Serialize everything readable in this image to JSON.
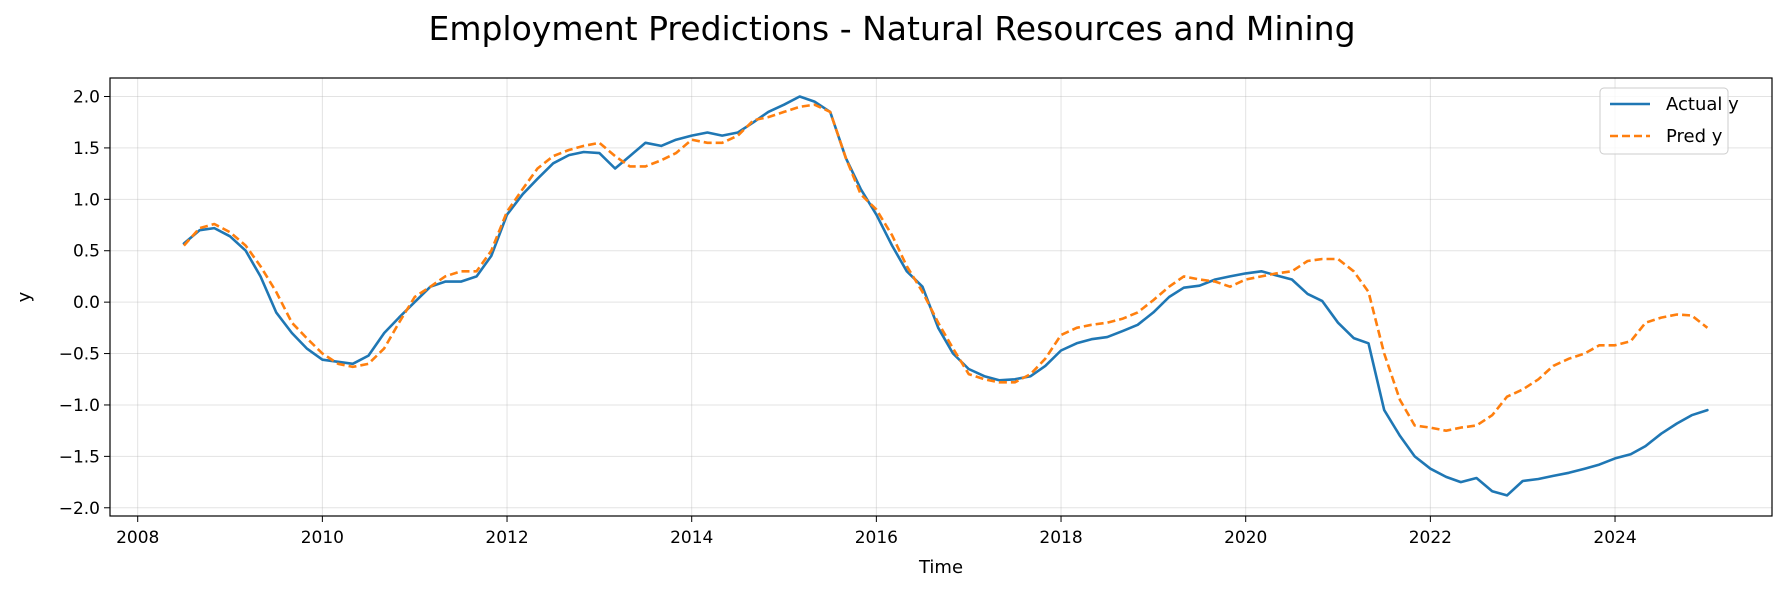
{
  "chart_data": {
    "type": "line",
    "title": "Employment Predictions - Natural Resources and Mining",
    "xlabel": "Time",
    "ylabel": "y",
    "xlim": [
      2007.7,
      2025.7
    ],
    "ylim": [
      -2.08,
      2.18
    ],
    "xticks": [
      2008,
      2010,
      2012,
      2014,
      2016,
      2018,
      2020,
      2022,
      2024
    ],
    "yticks": [
      -2.0,
      -1.5,
      -1.0,
      -0.5,
      0.0,
      0.5,
      1.0,
      1.5,
      2.0
    ],
    "ytick_labels": [
      "−2.0",
      "−1.5",
      "−1.0",
      "−0.5",
      "0.0",
      "0.5",
      "1.0",
      "1.5",
      "2.0"
    ],
    "grid": true,
    "legend_position": "top-right",
    "series": [
      {
        "name": "Actual y",
        "color": "#1f77b4",
        "style": "solid",
        "points": [
          [
            2008.5,
            0.57
          ],
          [
            2008.67,
            0.7
          ],
          [
            2008.83,
            0.72
          ],
          [
            2009.0,
            0.64
          ],
          [
            2009.17,
            0.5
          ],
          [
            2009.33,
            0.25
          ],
          [
            2009.5,
            -0.1
          ],
          [
            2009.67,
            -0.3
          ],
          [
            2009.83,
            -0.45
          ],
          [
            2010.0,
            -0.56
          ],
          [
            2010.17,
            -0.58
          ],
          [
            2010.33,
            -0.6
          ],
          [
            2010.5,
            -0.52
          ],
          [
            2010.67,
            -0.3
          ],
          [
            2010.83,
            -0.15
          ],
          [
            2011.0,
            0.0
          ],
          [
            2011.17,
            0.15
          ],
          [
            2011.33,
            0.2
          ],
          [
            2011.5,
            0.2
          ],
          [
            2011.67,
            0.25
          ],
          [
            2011.83,
            0.45
          ],
          [
            2012.0,
            0.85
          ],
          [
            2012.17,
            1.05
          ],
          [
            2012.33,
            1.2
          ],
          [
            2012.5,
            1.35
          ],
          [
            2012.67,
            1.43
          ],
          [
            2012.83,
            1.46
          ],
          [
            2013.0,
            1.45
          ],
          [
            2013.17,
            1.3
          ],
          [
            2013.33,
            1.42
          ],
          [
            2013.5,
            1.55
          ],
          [
            2013.67,
            1.52
          ],
          [
            2013.83,
            1.58
          ],
          [
            2014.0,
            1.62
          ],
          [
            2014.17,
            1.65
          ],
          [
            2014.33,
            1.62
          ],
          [
            2014.5,
            1.65
          ],
          [
            2014.67,
            1.75
          ],
          [
            2014.83,
            1.85
          ],
          [
            2015.0,
            1.92
          ],
          [
            2015.17,
            2.0
          ],
          [
            2015.33,
            1.95
          ],
          [
            2015.5,
            1.85
          ],
          [
            2015.67,
            1.4
          ],
          [
            2015.83,
            1.1
          ],
          [
            2016.0,
            0.85
          ],
          [
            2016.17,
            0.55
          ],
          [
            2016.33,
            0.3
          ],
          [
            2016.5,
            0.15
          ],
          [
            2016.67,
            -0.25
          ],
          [
            2016.83,
            -0.5
          ],
          [
            2017.0,
            -0.65
          ],
          [
            2017.17,
            -0.72
          ],
          [
            2017.33,
            -0.76
          ],
          [
            2017.5,
            -0.75
          ],
          [
            2017.67,
            -0.72
          ],
          [
            2017.83,
            -0.62
          ],
          [
            2018.0,
            -0.47
          ],
          [
            2018.17,
            -0.4
          ],
          [
            2018.33,
            -0.36
          ],
          [
            2018.5,
            -0.34
          ],
          [
            2018.67,
            -0.28
          ],
          [
            2018.83,
            -0.22
          ],
          [
            2019.0,
            -0.1
          ],
          [
            2019.17,
            0.05
          ],
          [
            2019.33,
            0.14
          ],
          [
            2019.5,
            0.16
          ],
          [
            2019.67,
            0.22
          ],
          [
            2019.83,
            0.25
          ],
          [
            2020.0,
            0.28
          ],
          [
            2020.17,
            0.3
          ],
          [
            2020.33,
            0.26
          ],
          [
            2020.5,
            0.22
          ],
          [
            2020.67,
            0.08
          ],
          [
            2020.83,
            0.01
          ],
          [
            2021.0,
            -0.2
          ],
          [
            2021.17,
            -0.35
          ],
          [
            2021.33,
            -0.4
          ],
          [
            2021.5,
            -1.05
          ],
          [
            2021.67,
            -1.3
          ],
          [
            2021.83,
            -1.5
          ],
          [
            2022.0,
            -1.62
          ],
          [
            2022.17,
            -1.7
          ],
          [
            2022.33,
            -1.75
          ],
          [
            2022.5,
            -1.71
          ],
          [
            2022.67,
            -1.84
          ],
          [
            2022.83,
            -1.88
          ],
          [
            2023.0,
            -1.74
          ],
          [
            2023.17,
            -1.72
          ],
          [
            2023.33,
            -1.69
          ],
          [
            2023.5,
            -1.66
          ],
          [
            2023.67,
            -1.62
          ],
          [
            2023.83,
            -1.58
          ],
          [
            2024.0,
            -1.52
          ],
          [
            2024.17,
            -1.48
          ],
          [
            2024.33,
            -1.4
          ],
          [
            2024.5,
            -1.28
          ],
          [
            2024.67,
            -1.18
          ],
          [
            2024.83,
            -1.1
          ],
          [
            2025.0,
            -1.05
          ]
        ]
      },
      {
        "name": "Pred y",
        "color": "#ff7f0e",
        "style": "dashed",
        "points": [
          [
            2008.5,
            0.55
          ],
          [
            2008.67,
            0.72
          ],
          [
            2008.83,
            0.76
          ],
          [
            2009.0,
            0.68
          ],
          [
            2009.17,
            0.55
          ],
          [
            2009.33,
            0.35
          ],
          [
            2009.5,
            0.1
          ],
          [
            2009.67,
            -0.2
          ],
          [
            2009.83,
            -0.35
          ],
          [
            2010.0,
            -0.5
          ],
          [
            2010.17,
            -0.6
          ],
          [
            2010.33,
            -0.63
          ],
          [
            2010.5,
            -0.6
          ],
          [
            2010.67,
            -0.45
          ],
          [
            2010.83,
            -0.2
          ],
          [
            2011.0,
            0.05
          ],
          [
            2011.17,
            0.15
          ],
          [
            2011.33,
            0.25
          ],
          [
            2011.5,
            0.3
          ],
          [
            2011.67,
            0.3
          ],
          [
            2011.83,
            0.5
          ],
          [
            2012.0,
            0.88
          ],
          [
            2012.17,
            1.1
          ],
          [
            2012.33,
            1.3
          ],
          [
            2012.5,
            1.42
          ],
          [
            2012.67,
            1.48
          ],
          [
            2012.83,
            1.52
          ],
          [
            2013.0,
            1.55
          ],
          [
            2013.17,
            1.42
          ],
          [
            2013.33,
            1.32
          ],
          [
            2013.5,
            1.32
          ],
          [
            2013.67,
            1.38
          ],
          [
            2013.83,
            1.45
          ],
          [
            2014.0,
            1.58
          ],
          [
            2014.17,
            1.55
          ],
          [
            2014.33,
            1.55
          ],
          [
            2014.5,
            1.62
          ],
          [
            2014.67,
            1.77
          ],
          [
            2014.83,
            1.8
          ],
          [
            2015.0,
            1.85
          ],
          [
            2015.17,
            1.9
          ],
          [
            2015.33,
            1.92
          ],
          [
            2015.5,
            1.85
          ],
          [
            2015.67,
            1.4
          ],
          [
            2015.83,
            1.05
          ],
          [
            2016.0,
            0.9
          ],
          [
            2016.17,
            0.65
          ],
          [
            2016.33,
            0.35
          ],
          [
            2016.5,
            0.1
          ],
          [
            2016.67,
            -0.2
          ],
          [
            2016.83,
            -0.45
          ],
          [
            2017.0,
            -0.7
          ],
          [
            2017.17,
            -0.75
          ],
          [
            2017.33,
            -0.78
          ],
          [
            2017.5,
            -0.78
          ],
          [
            2017.67,
            -0.7
          ],
          [
            2017.83,
            -0.55
          ],
          [
            2018.0,
            -0.32
          ],
          [
            2018.17,
            -0.25
          ],
          [
            2018.33,
            -0.22
          ],
          [
            2018.5,
            -0.2
          ],
          [
            2018.67,
            -0.16
          ],
          [
            2018.83,
            -0.1
          ],
          [
            2019.0,
            0.02
          ],
          [
            2019.17,
            0.15
          ],
          [
            2019.33,
            0.25
          ],
          [
            2019.5,
            0.22
          ],
          [
            2019.67,
            0.2
          ],
          [
            2019.83,
            0.15
          ],
          [
            2020.0,
            0.22
          ],
          [
            2020.17,
            0.25
          ],
          [
            2020.33,
            0.28
          ],
          [
            2020.5,
            0.3
          ],
          [
            2020.67,
            0.4
          ],
          [
            2020.83,
            0.42
          ],
          [
            2021.0,
            0.42
          ],
          [
            2021.17,
            0.3
          ],
          [
            2021.33,
            0.1
          ],
          [
            2021.5,
            -0.5
          ],
          [
            2021.67,
            -0.95
          ],
          [
            2021.83,
            -1.2
          ],
          [
            2022.0,
            -1.22
          ],
          [
            2022.17,
            -1.25
          ],
          [
            2022.33,
            -1.22
          ],
          [
            2022.5,
            -1.2
          ],
          [
            2022.67,
            -1.1
          ],
          [
            2022.83,
            -0.92
          ],
          [
            2023.0,
            -0.85
          ],
          [
            2023.17,
            -0.75
          ],
          [
            2023.33,
            -0.62
          ],
          [
            2023.5,
            -0.55
          ],
          [
            2023.67,
            -0.5
          ],
          [
            2023.83,
            -0.42
          ],
          [
            2024.0,
            -0.42
          ],
          [
            2024.17,
            -0.38
          ],
          [
            2024.33,
            -0.2
          ],
          [
            2024.5,
            -0.15
          ],
          [
            2024.67,
            -0.12
          ],
          [
            2024.83,
            -0.13
          ],
          [
            2025.0,
            -0.25
          ]
        ]
      }
    ]
  }
}
